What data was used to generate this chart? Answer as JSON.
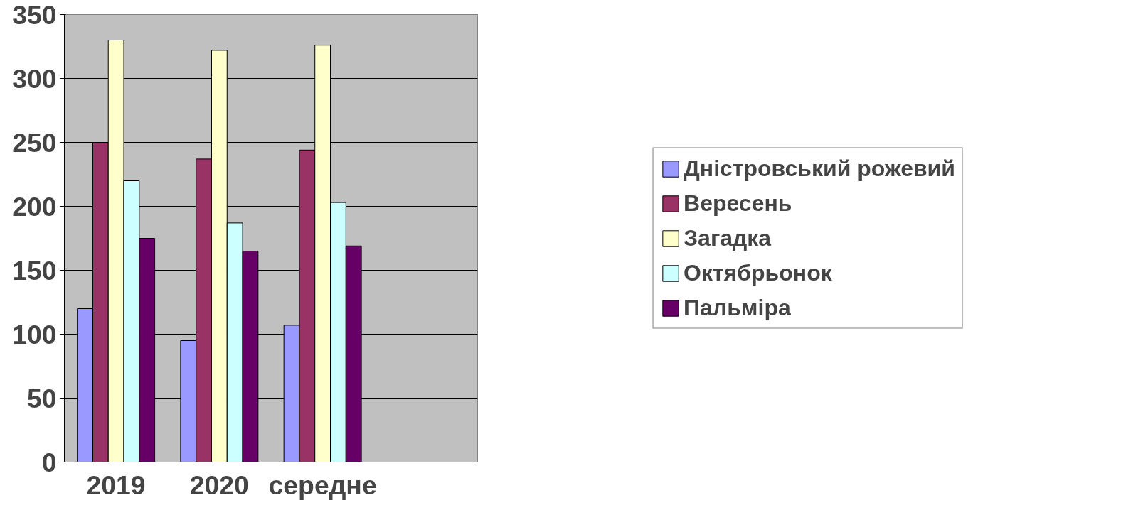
{
  "chart_data": {
    "type": "bar",
    "categories": [
      "2019",
      "2020",
      "середне",
      null
    ],
    "series": [
      {
        "name": "Дністровський рожевий",
        "color": "#9999ff",
        "values": [
          120,
          95,
          107,
          null
        ]
      },
      {
        "name": "Вересень",
        "color": "#993366",
        "values": [
          250,
          237,
          244,
          null
        ]
      },
      {
        "name": "Загадка",
        "color": "#ffffcc",
        "values": [
          330,
          322,
          326,
          null
        ]
      },
      {
        "name": "Октябрьонок",
        "color": "#ccffff",
        "values": [
          220,
          187,
          203,
          null
        ]
      },
      {
        "name": "Пальміра",
        "color": "#660066",
        "values": [
          175,
          165,
          169,
          null
        ]
      }
    ],
    "ylim": [
      0,
      350
    ],
    "yticks": [
      0,
      50,
      100,
      150,
      200,
      250,
      300,
      350
    ],
    "grid": "y",
    "legend": "right"
  }
}
